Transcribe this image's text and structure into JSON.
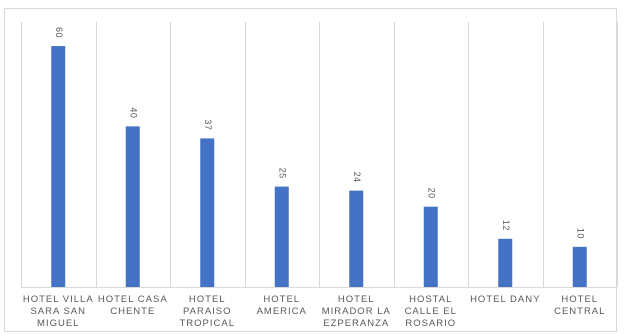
{
  "chart_data": {
    "type": "bar",
    "categories": [
      [
        "HOTEL VILLA",
        "SARA SAN",
        "MIGUEL"
      ],
      [
        "HOTEL CASA",
        "CHENTE"
      ],
      [
        "HOTEL",
        "PARAISO",
        "TROPICAL"
      ],
      [
        "HOTEL",
        "AMERICA"
      ],
      [
        "HOTEL",
        "MIRADOR LA",
        "EZPERANZA"
      ],
      [
        "HOSTAL",
        "CALLE EL",
        "ROSARIO"
      ],
      [
        "HOTEL DANY"
      ],
      [
        "HOTEL",
        "CENTRAL"
      ]
    ],
    "values": [
      60,
      40,
      37,
      25,
      24,
      20,
      12,
      10
    ],
    "data_labels": [
      "60",
      "40",
      "37",
      "25",
      "24",
      "20",
      "12",
      "10"
    ],
    "ylim": [
      0,
      64
    ],
    "grid": "vertical category separators",
    "legend": "none",
    "colors": {
      "bar": "#4472c4",
      "gridline": "#d9d9d9",
      "label": "#595959"
    }
  }
}
